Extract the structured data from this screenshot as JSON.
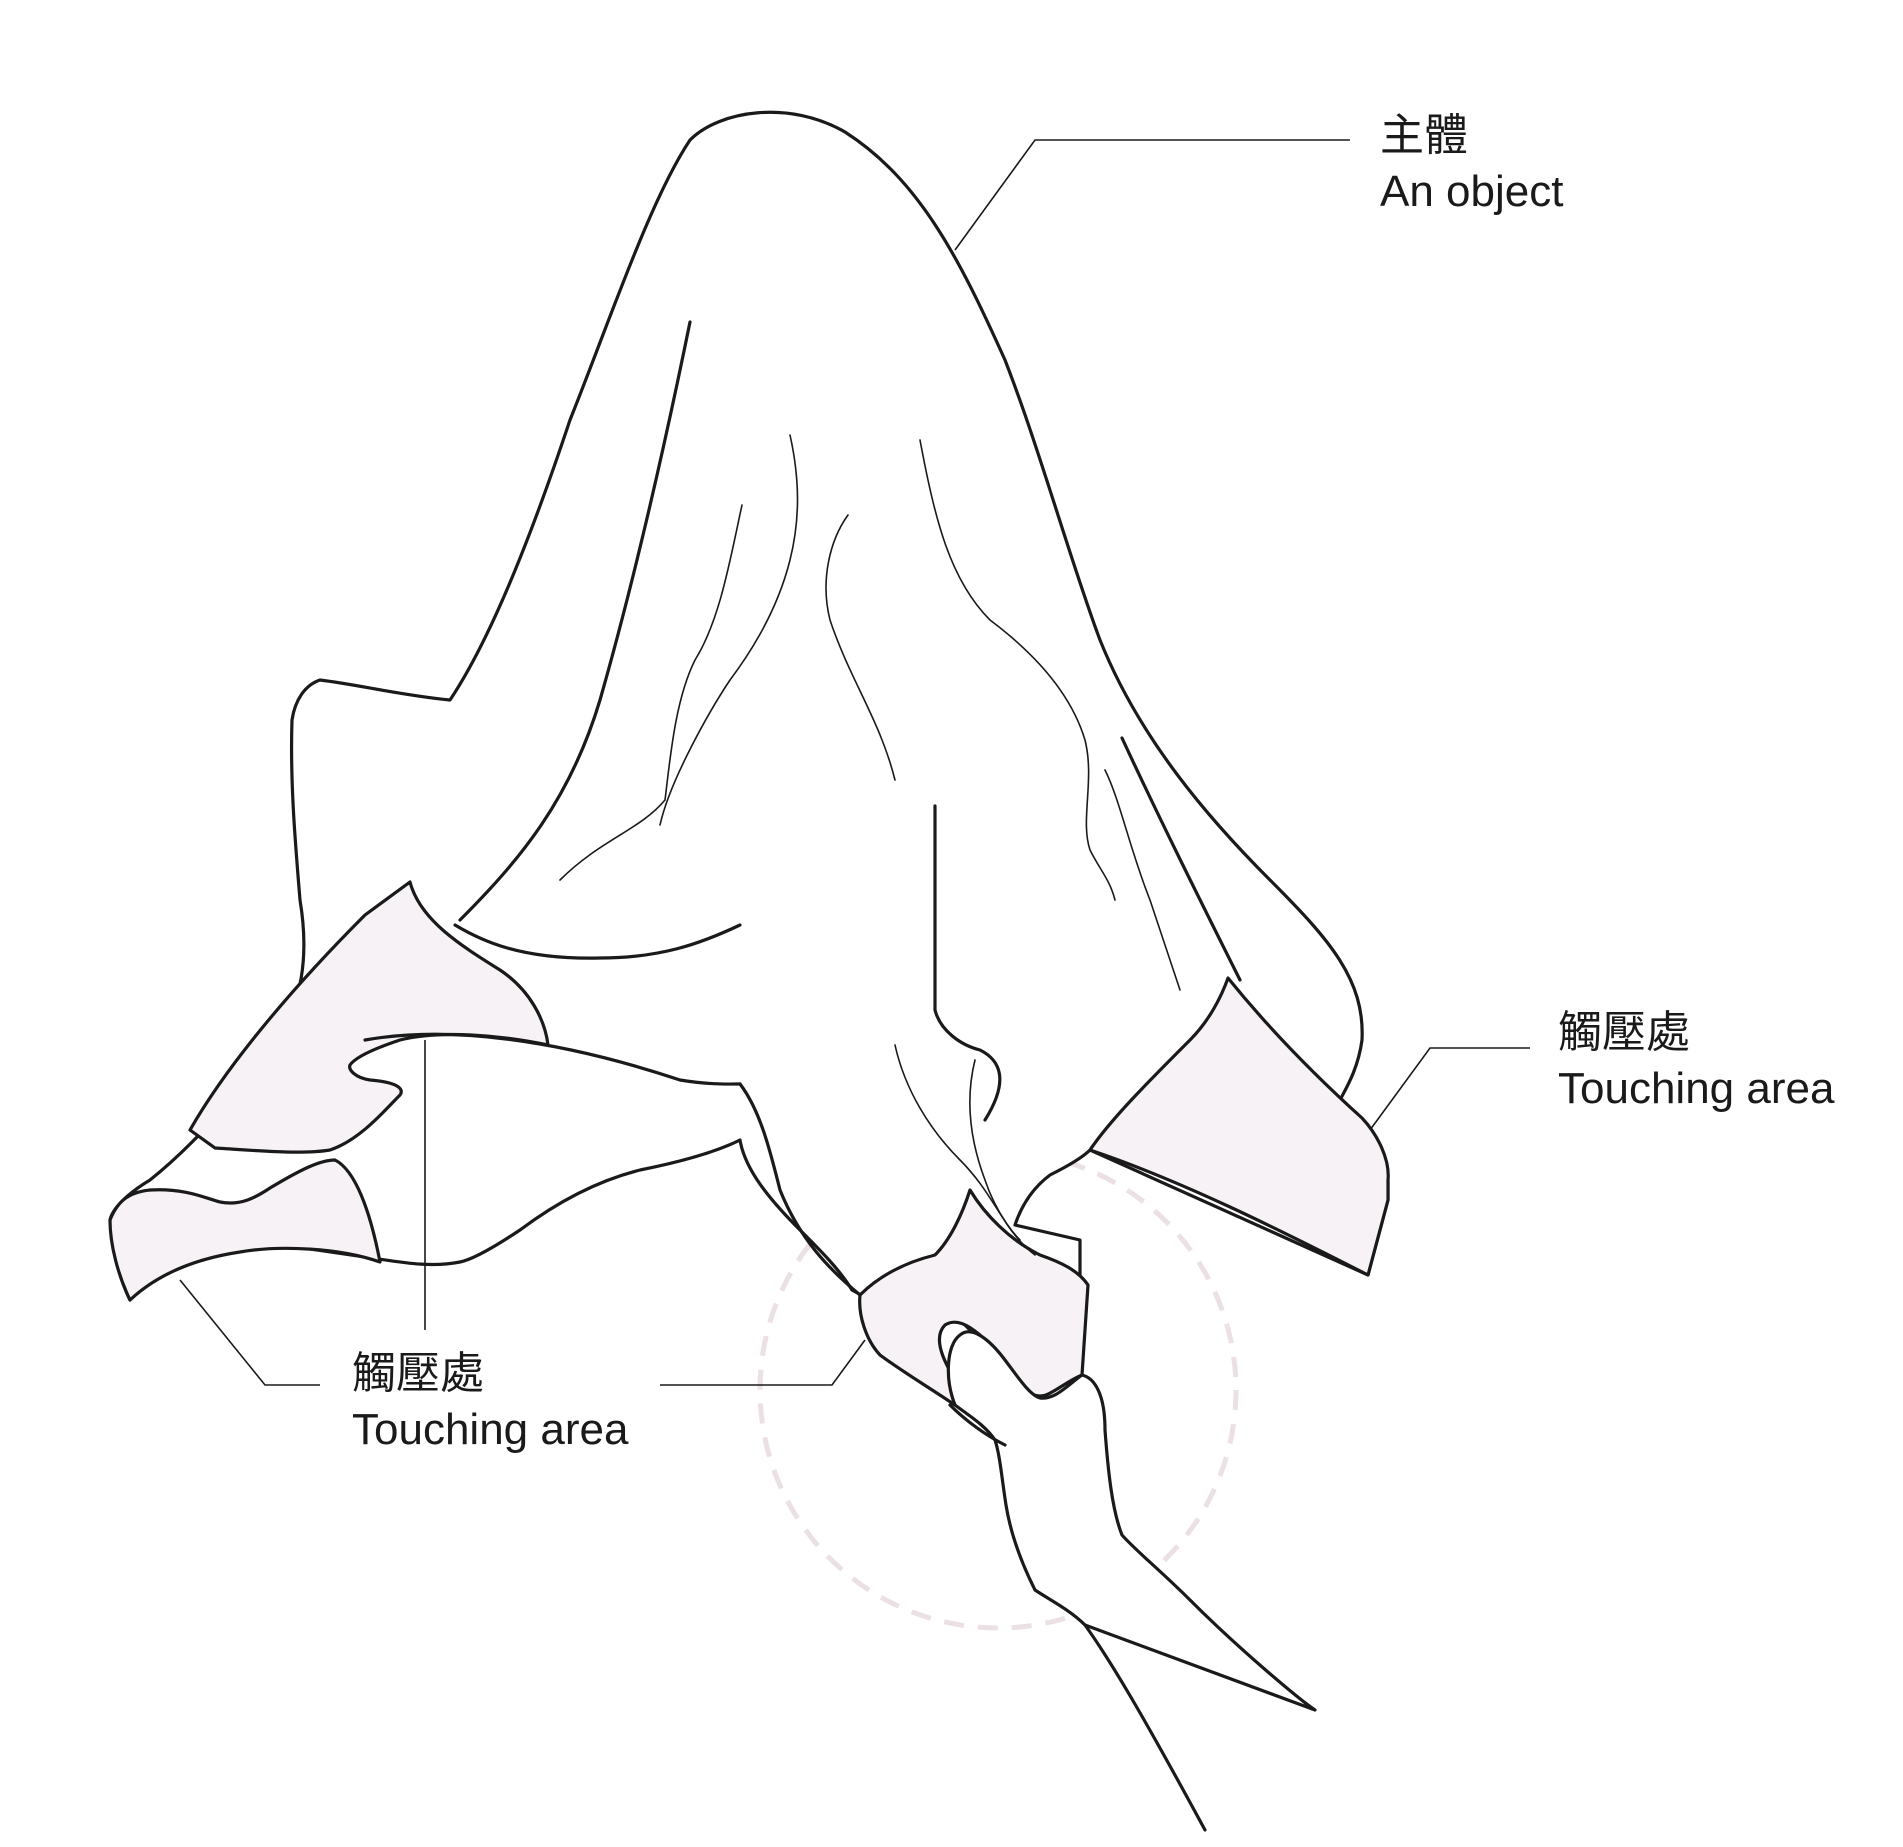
{
  "colors": {
    "line": "#1a1a1a",
    "touch_fill": "#f7f2f5",
    "focus_ring": "#ebe0e4",
    "background": "#ffffff"
  },
  "labels": {
    "object": {
      "zh": "主體",
      "en": "An object"
    },
    "touch_right": {
      "zh": "觸壓處",
      "en": "Touching area"
    },
    "touch_left": {
      "zh": "觸壓處",
      "en": "Touching area"
    }
  }
}
